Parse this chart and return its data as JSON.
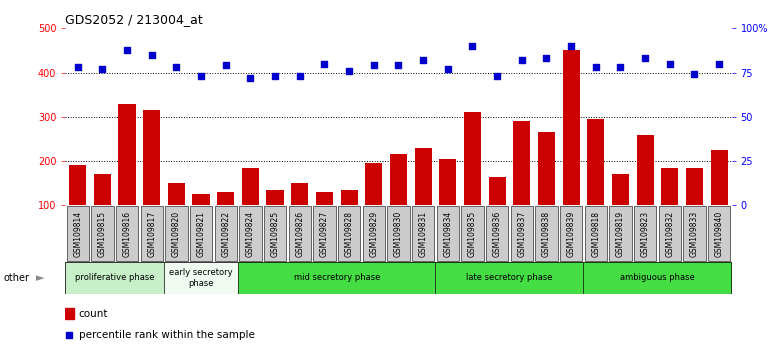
{
  "title": "GDS2052 / 213004_at",
  "samples": [
    "GSM109814",
    "GSM109815",
    "GSM109816",
    "GSM109817",
    "GSM109820",
    "GSM109821",
    "GSM109822",
    "GSM109824",
    "GSM109825",
    "GSM109826",
    "GSM109827",
    "GSM109828",
    "GSM109829",
    "GSM109830",
    "GSM109831",
    "GSM109834",
    "GSM109835",
    "GSM109836",
    "GSM109837",
    "GSM109838",
    "GSM109839",
    "GSM109818",
    "GSM109819",
    "GSM109823",
    "GSM109832",
    "GSM109833",
    "GSM109840"
  ],
  "counts": [
    190,
    170,
    330,
    315,
    150,
    125,
    130,
    185,
    135,
    150,
    130,
    135,
    195,
    215,
    230,
    205,
    310,
    165,
    290,
    265,
    450,
    295,
    170,
    260,
    185,
    185,
    225
  ],
  "percentiles": [
    78,
    77,
    88,
    85,
    78,
    73,
    79,
    72,
    73,
    73,
    80,
    76,
    79,
    79,
    82,
    77,
    90,
    73,
    82,
    83,
    90,
    78,
    78,
    83,
    80,
    74,
    80
  ],
  "phases": [
    {
      "name": "proliferative phase",
      "start": 0,
      "end": 4,
      "color": "#c8f0c8"
    },
    {
      "name": "early secretory\nphase",
      "start": 4,
      "end": 7,
      "color": "#f0faf0"
    },
    {
      "name": "mid secretory phase",
      "start": 7,
      "end": 15,
      "color": "#44dd44"
    },
    {
      "name": "late secretory phase",
      "start": 15,
      "end": 21,
      "color": "#44dd44"
    },
    {
      "name": "ambiguous phase",
      "start": 21,
      "end": 27,
      "color": "#44dd44"
    }
  ],
  "bar_color": "#cc0000",
  "dot_color": "#0000cc",
  "ylim_left": [
    100,
    500
  ],
  "ylim_right": [
    0,
    100
  ],
  "yticks_left": [
    100,
    200,
    300,
    400,
    500
  ],
  "yticks_right": [
    0,
    25,
    50,
    75,
    100
  ],
  "yticklabels_left": [
    "100",
    "200",
    "300",
    "400",
    "500"
  ],
  "yticklabels_right": [
    "0",
    "25",
    "50",
    "75",
    "100%"
  ],
  "bg_color": "#ffffff",
  "tick_box_color": "#cccccc",
  "legend_count_label": "count",
  "legend_pct_label": "percentile rank within the sample",
  "other_label": "other"
}
